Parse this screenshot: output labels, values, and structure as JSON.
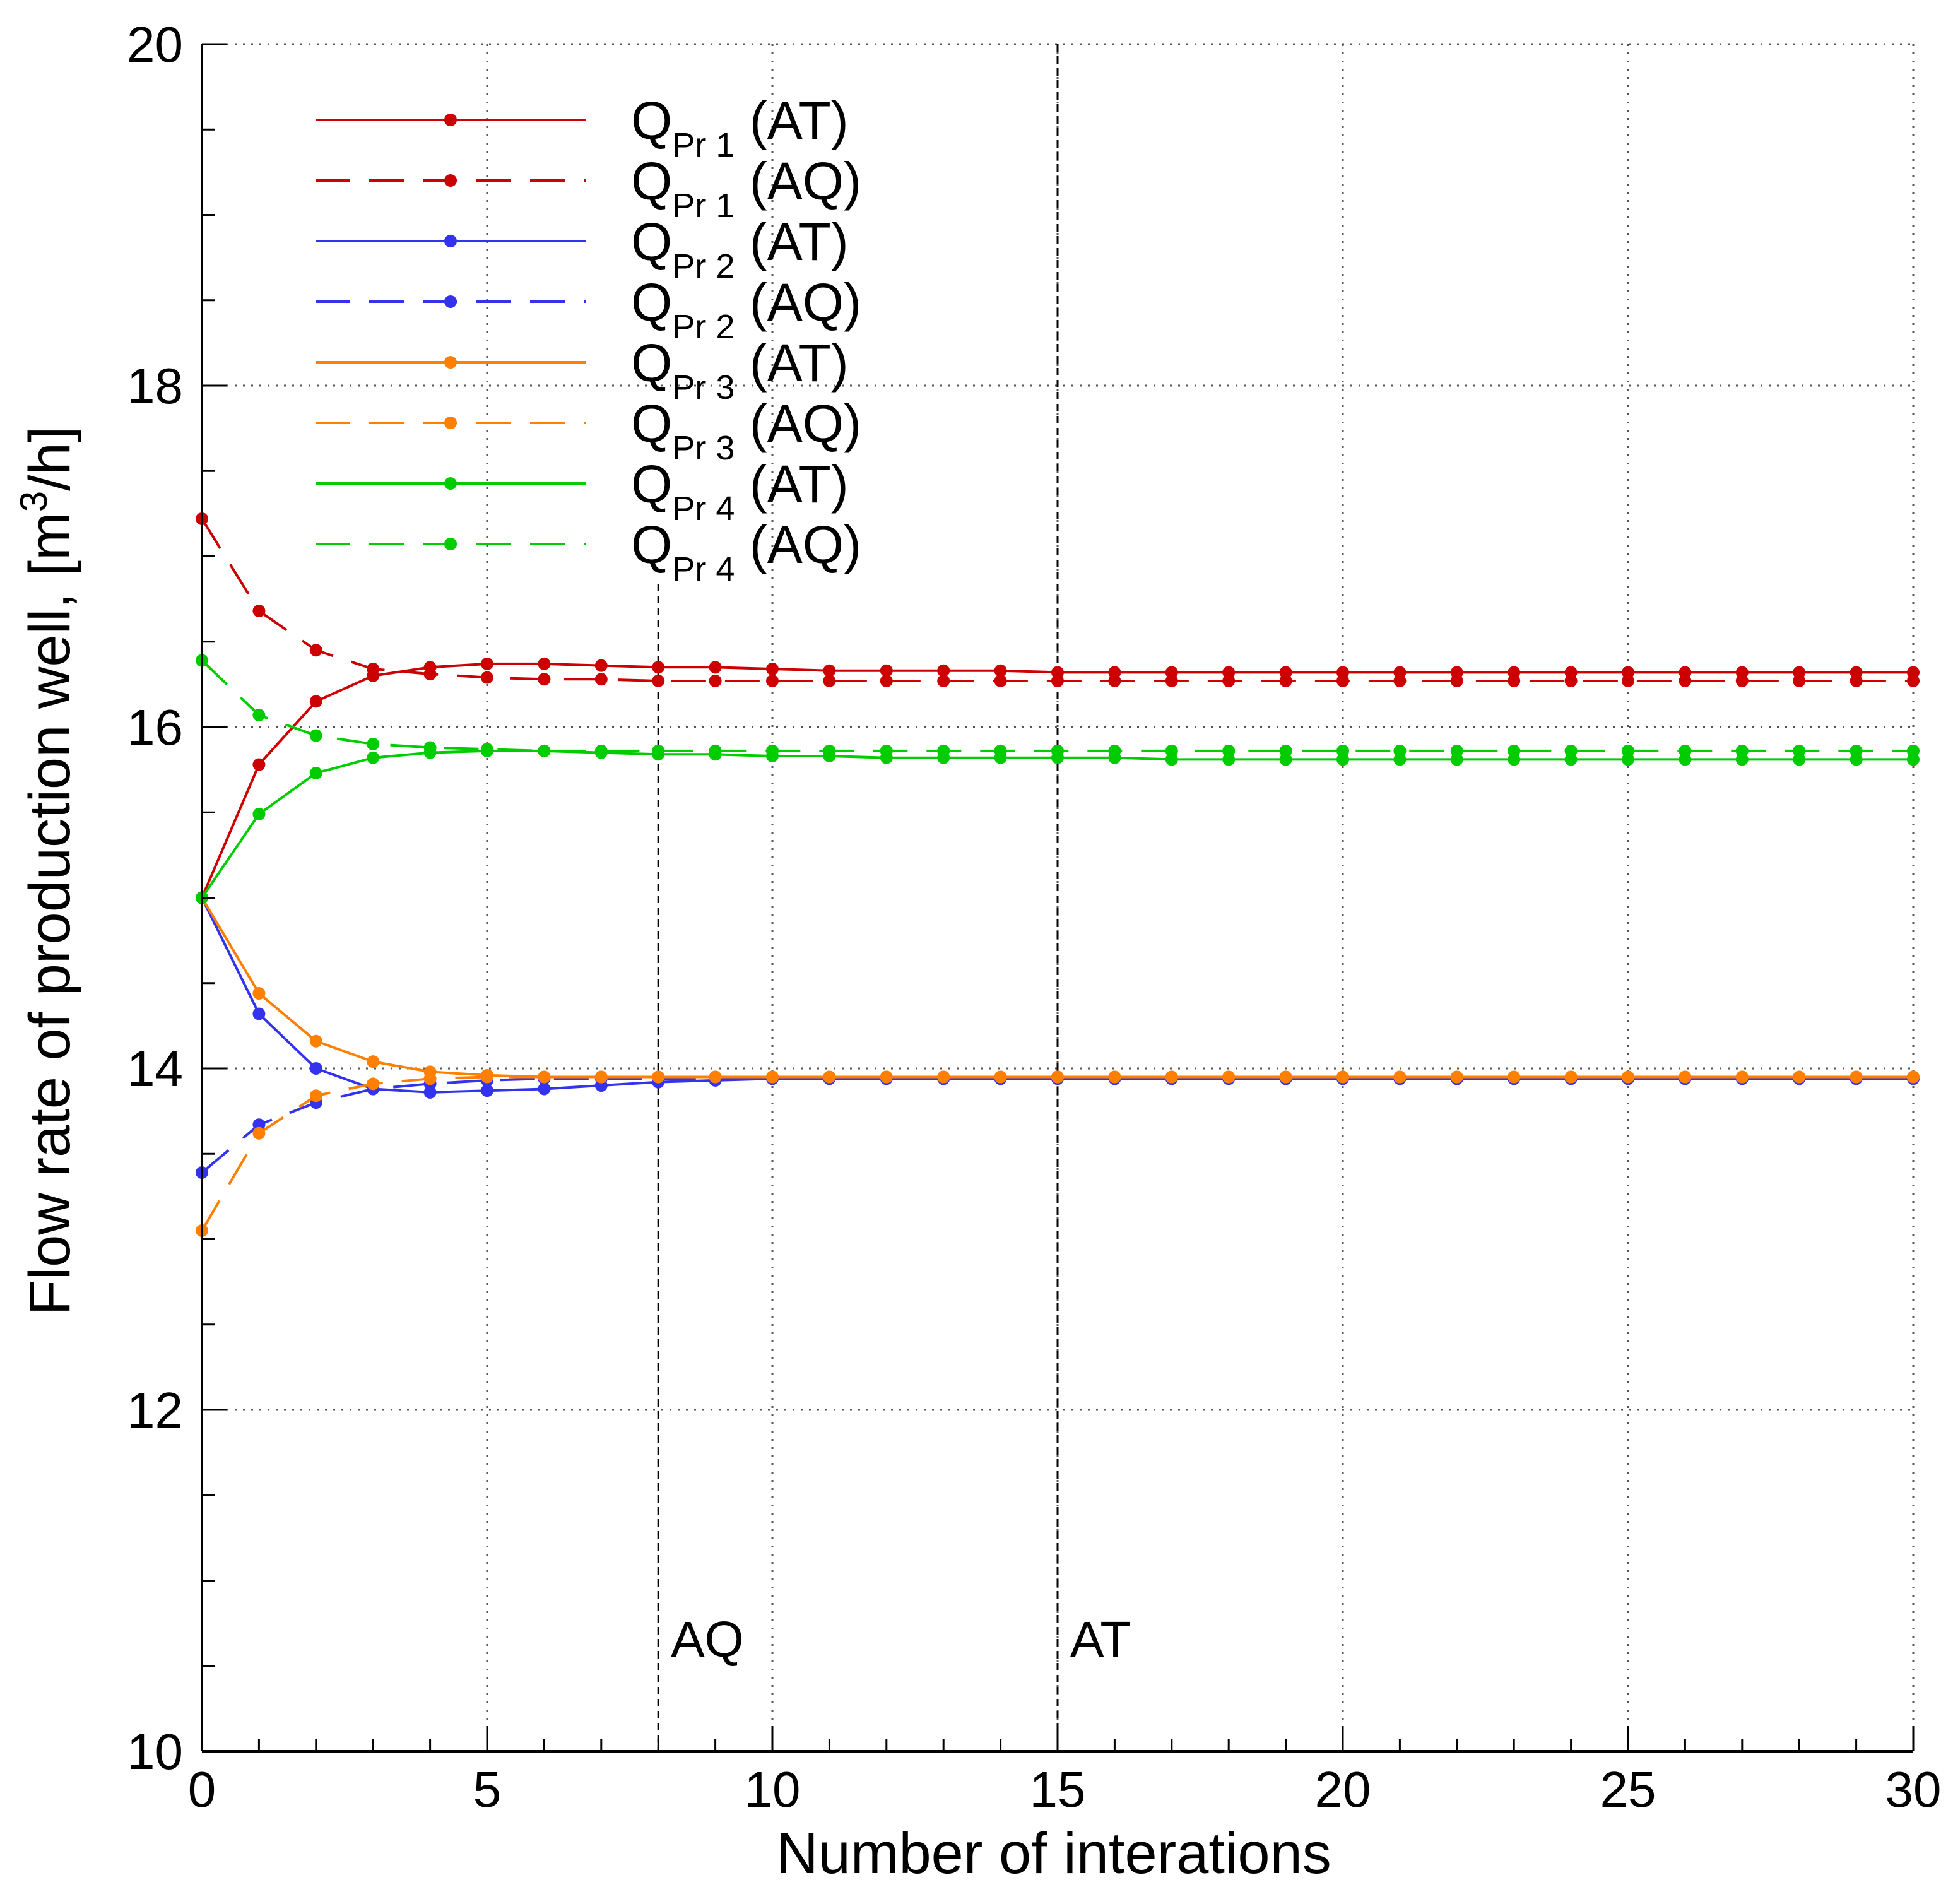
{
  "chart_data": {
    "type": "line",
    "xlabel": "Number of interations",
    "ylabel_main": "Flow rate of production well, [m",
    "ylabel_sup": "3",
    "ylabel_end": "/h]",
    "xlim": [
      0,
      30
    ],
    "ylim": [
      10,
      20
    ],
    "x_ticks": [
      "0",
      "5",
      "10",
      "15",
      "20",
      "25",
      "30"
    ],
    "y_ticks": [
      "10",
      "12",
      "14",
      "16",
      "18",
      "20"
    ],
    "grid": "dotted",
    "legend_position": "top-left",
    "annotations": [
      {
        "x": 8,
        "label": "AQ"
      },
      {
        "x": 15,
        "label": "AT"
      }
    ],
    "x": [
      0,
      1,
      2,
      3,
      4,
      5,
      6,
      7,
      8,
      9,
      10,
      11,
      12,
      13,
      14,
      15,
      16,
      17,
      18,
      19,
      20,
      21,
      22,
      23,
      24,
      25,
      26,
      27,
      28,
      29,
      30
    ],
    "series": [
      {
        "name": "Q",
        "sub": "Pr 1",
        "method": "(AT)",
        "color": "#cc0000",
        "dashed": false,
        "values": [
          15.0,
          15.78,
          16.15,
          16.3,
          16.35,
          16.37,
          16.37,
          16.36,
          16.35,
          16.35,
          16.34,
          16.33,
          16.33,
          16.33,
          16.33,
          16.32,
          16.32,
          16.32,
          16.32,
          16.32,
          16.32,
          16.32,
          16.32,
          16.32,
          16.32,
          16.32,
          16.32,
          16.32,
          16.32,
          16.32,
          16.32
        ]
      },
      {
        "name": "Q",
        "sub": "Pr 1",
        "method": "(AQ)",
        "color": "#cc0000",
        "dashed": true,
        "values": [
          17.22,
          16.68,
          16.45,
          16.34,
          16.31,
          16.29,
          16.28,
          16.28,
          16.27,
          16.27,
          16.27,
          16.27,
          16.27,
          16.27,
          16.27,
          16.27,
          16.27,
          16.27,
          16.27,
          16.27,
          16.27,
          16.27,
          16.27,
          16.27,
          16.27,
          16.27,
          16.27,
          16.27,
          16.27,
          16.27,
          16.27
        ]
      },
      {
        "name": "Q",
        "sub": "Pr 2",
        "method": "(AT)",
        "color": "#3333ee",
        "dashed": false,
        "values": [
          15.0,
          14.32,
          14.0,
          13.88,
          13.86,
          13.87,
          13.88,
          13.9,
          13.92,
          13.93,
          13.94,
          13.94,
          13.94,
          13.94,
          13.94,
          13.94,
          13.94,
          13.94,
          13.94,
          13.94,
          13.94,
          13.94,
          13.94,
          13.94,
          13.94,
          13.94,
          13.94,
          13.94,
          13.94,
          13.94,
          13.94
        ]
      },
      {
        "name": "Q",
        "sub": "Pr 2",
        "method": "(AQ)",
        "color": "#3333ee",
        "dashed": true,
        "values": [
          13.39,
          13.67,
          13.8,
          13.88,
          13.91,
          13.93,
          13.94,
          13.94,
          13.94,
          13.94,
          13.94,
          13.94,
          13.94,
          13.94,
          13.94,
          13.94,
          13.94,
          13.94,
          13.94,
          13.94,
          13.94,
          13.94,
          13.94,
          13.94,
          13.94,
          13.94,
          13.94,
          13.94,
          13.94,
          13.94,
          13.94
        ]
      },
      {
        "name": "Q",
        "sub": "Pr 3",
        "method": "(AT)",
        "color": "#ff8000",
        "dashed": false,
        "values": [
          15.0,
          14.44,
          14.16,
          14.04,
          13.98,
          13.96,
          13.95,
          13.95,
          13.95,
          13.95,
          13.95,
          13.95,
          13.95,
          13.95,
          13.95,
          13.95,
          13.95,
          13.95,
          13.95,
          13.95,
          13.95,
          13.95,
          13.95,
          13.95,
          13.95,
          13.95,
          13.95,
          13.95,
          13.95,
          13.95,
          13.95
        ]
      },
      {
        "name": "Q",
        "sub": "Pr 3",
        "method": "(AQ)",
        "color": "#ff8000",
        "dashed": true,
        "values": [
          13.05,
          13.62,
          13.84,
          13.91,
          13.94,
          13.95,
          13.95,
          13.95,
          13.95,
          13.95,
          13.95,
          13.95,
          13.95,
          13.95,
          13.95,
          13.95,
          13.95,
          13.95,
          13.95,
          13.95,
          13.95,
          13.95,
          13.95,
          13.95,
          13.95,
          13.95,
          13.95,
          13.95,
          13.95,
          13.95,
          13.95
        ]
      },
      {
        "name": "Q",
        "sub": "Pr 4",
        "method": "(AT)",
        "color": "#00cc00",
        "dashed": false,
        "values": [
          15.0,
          15.49,
          15.73,
          15.82,
          15.85,
          15.86,
          15.86,
          15.85,
          15.84,
          15.84,
          15.83,
          15.83,
          15.82,
          15.82,
          15.82,
          15.82,
          15.82,
          15.81,
          15.81,
          15.81,
          15.81,
          15.81,
          15.81,
          15.81,
          15.81,
          15.81,
          15.81,
          15.81,
          15.81,
          15.81,
          15.81
        ]
      },
      {
        "name": "Q",
        "sub": "Pr 4",
        "method": "(AQ)",
        "color": "#00cc00",
        "dashed": true,
        "values": [
          16.39,
          16.07,
          15.95,
          15.9,
          15.88,
          15.87,
          15.86,
          15.86,
          15.86,
          15.86,
          15.86,
          15.86,
          15.86,
          15.86,
          15.86,
          15.86,
          15.86,
          15.86,
          15.86,
          15.86,
          15.86,
          15.86,
          15.86,
          15.86,
          15.86,
          15.86,
          15.86,
          15.86,
          15.86,
          15.86,
          15.86
        ]
      }
    ]
  }
}
